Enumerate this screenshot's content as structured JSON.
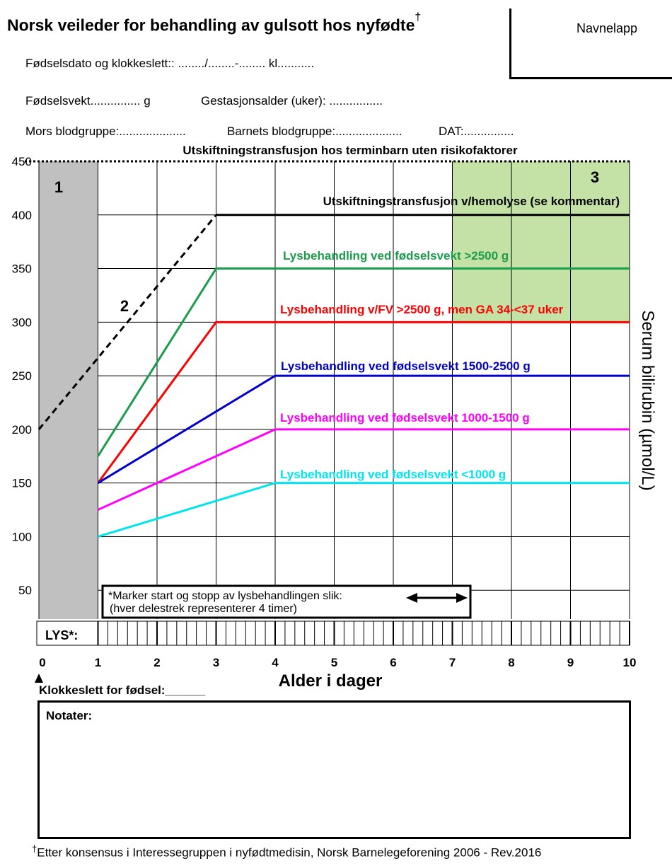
{
  "header": {
    "title": "Norsk veileder for behandling av gulsott hos nyfødte",
    "title_mark": "†",
    "name_label": "Navnelapp",
    "birth_line": "Fødselsdato og klokkeslett:: ......../........-........ kl...........",
    "weight_label": "Fødselsvekt............... g",
    "gestation_label": "Gestasjonsalder (uker): ................",
    "mother_blood": "Mors blodgruppe:....................",
    "child_blood": "Barnets blodgruppe:....................",
    "dat": "DAT:..............."
  },
  "notes": {
    "birth_time": "Klokkeslett for fødsel:______",
    "label": "Notater:"
  },
  "footer": {
    "mark": "†",
    "text": "Etter konsensus i Interessegruppen i nyfødtmedisin, Norsk Barnelegeforening 2006 - Rev.2016"
  },
  "chart_data": {
    "type": "line",
    "xlabel": "Alder i dager",
    "ylabel": "Serum bilirubin (µmol/L)",
    "xlim": [
      0,
      10
    ],
    "ylim": [
      0,
      450
    ],
    "x_ticks": [
      0,
      1,
      2,
      3,
      4,
      5,
      6,
      7,
      8,
      9,
      10
    ],
    "y_ticks": [
      50,
      100,
      150,
      200,
      250,
      300,
      350,
      400,
      450
    ],
    "top_line_label": "Utskiftningstransfusjon hos terminbarn uten risikofaktorer",
    "regions": [
      {
        "label": "1",
        "x_from": 0,
        "x_to": 1,
        "y_from": 0,
        "y_to": 450,
        "color": "#c0c0c0"
      },
      {
        "label": "3",
        "x_from": 7,
        "x_to": 10,
        "y_from": 300,
        "y_to": 450,
        "color": "#c4e2a6"
      }
    ],
    "series": [
      {
        "name": "Utskiftningstransfusjon v/hemolyse (se kommentar)",
        "color": "#000000",
        "x": [
          0,
          3,
          10
        ],
        "y": [
          200,
          400,
          400
        ],
        "dashed_until_x": 3,
        "marker_label": "2"
      },
      {
        "name": "Lysbehandling ved fødselsvekt >2500 g",
        "color": "#1a9c4a",
        "x": [
          1,
          3,
          10
        ],
        "y": [
          175,
          350,
          350
        ]
      },
      {
        "name": "Lysbehandling v/FV >2500 g, men GA 34-<37 uker",
        "color": "#ff0000",
        "x": [
          1,
          3,
          10
        ],
        "y": [
          150,
          300,
          300
        ]
      },
      {
        "name": "Lysbehandling ved fødselsvekt 1500-2500 g",
        "color": "#0000cc",
        "x": [
          1,
          4,
          10
        ],
        "y": [
          150,
          250,
          250
        ]
      },
      {
        "name": "Lysbehandling ved fødselsvekt 1000-1500 g",
        "color": "#ff00ff",
        "x": [
          1,
          4,
          10
        ],
        "y": [
          125,
          200,
          200
        ]
      },
      {
        "name": "Lysbehandling ved fødselsvekt <1000 g",
        "color": "#00e5ee",
        "x": [
          1,
          4,
          10
        ],
        "y": [
          100,
          150,
          150
        ]
      }
    ],
    "lys_label": "LYS*:",
    "lys_ticks_per_day": 6,
    "instruction_line1": "*Marker start og stopp av lysbehandlingen slik:",
    "instruction_line2": "(hver delestrek representerer 4 timer)"
  }
}
